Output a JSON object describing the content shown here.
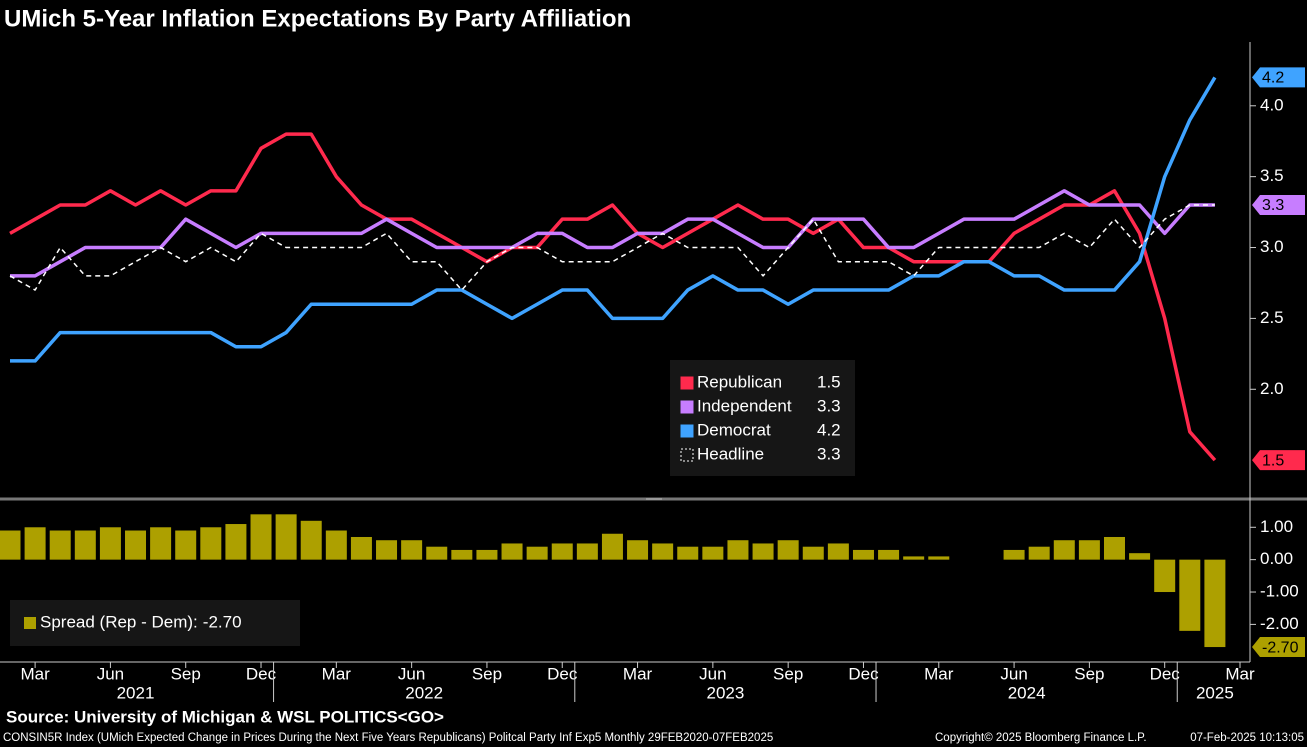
{
  "chart_data": [
    {
      "type": "line",
      "title": "UMich 5-Year Inflation Expectations By Party Affiliation",
      "x": [
        "2021-02",
        "2021-03",
        "2021-04",
        "2021-05",
        "2021-06",
        "2021-07",
        "2021-08",
        "2021-09",
        "2021-10",
        "2021-11",
        "2021-12",
        "2022-01",
        "2022-02",
        "2022-03",
        "2022-04",
        "2022-05",
        "2022-06",
        "2022-07",
        "2022-08",
        "2022-09",
        "2022-10",
        "2022-11",
        "2022-12",
        "2023-01",
        "2023-02",
        "2023-03",
        "2023-04",
        "2023-05",
        "2023-06",
        "2023-07",
        "2023-08",
        "2023-09",
        "2023-10",
        "2023-11",
        "2023-12",
        "2024-01",
        "2024-02",
        "2024-03",
        "2024-04",
        "2024-05",
        "2024-06",
        "2024-07",
        "2024-08",
        "2024-09",
        "2024-10",
        "2024-11",
        "2024-12",
        "2025-01",
        "2025-02"
      ],
      "xlim": [
        "2021-02",
        "2025-03"
      ],
      "series": [
        {
          "name": "Republican",
          "color": "#ff2a4d",
          "values": [
            3.1,
            3.2,
            3.3,
            3.3,
            3.4,
            3.3,
            3.4,
            3.3,
            3.4,
            3.4,
            3.7,
            3.8,
            3.8,
            3.5,
            3.3,
            3.2,
            3.2,
            3.1,
            3.0,
            2.9,
            3.0,
            3.0,
            3.2,
            3.2,
            3.3,
            3.1,
            3.0,
            3.1,
            3.2,
            3.3,
            3.2,
            3.2,
            3.1,
            3.2,
            3.0,
            3.0,
            2.9,
            2.9,
            2.9,
            2.9,
            3.1,
            3.2,
            3.3,
            3.3,
            3.4,
            3.1,
            2.5,
            1.7,
            1.5
          ]
        },
        {
          "name": "Independent",
          "color": "#c77dff",
          "values": [
            2.8,
            2.8,
            2.9,
            3.0,
            3.0,
            3.0,
            3.0,
            3.2,
            3.1,
            3.0,
            3.1,
            3.1,
            3.1,
            3.1,
            3.1,
            3.2,
            3.1,
            3.0,
            3.0,
            3.0,
            3.0,
            3.1,
            3.1,
            3.0,
            3.0,
            3.1,
            3.1,
            3.2,
            3.2,
            3.1,
            3.0,
            3.0,
            3.2,
            3.2,
            3.2,
            3.0,
            3.0,
            3.1,
            3.2,
            3.2,
            3.2,
            3.3,
            3.4,
            3.3,
            3.3,
            3.3,
            3.1,
            3.3,
            3.3
          ]
        },
        {
          "name": "Democrat",
          "color": "#3fa3ff",
          "values": [
            2.2,
            2.2,
            2.4,
            2.4,
            2.4,
            2.4,
            2.4,
            2.4,
            2.4,
            2.3,
            2.3,
            2.4,
            2.6,
            2.6,
            2.6,
            2.6,
            2.6,
            2.7,
            2.7,
            2.6,
            2.5,
            2.6,
            2.7,
            2.7,
            2.5,
            2.5,
            2.5,
            2.7,
            2.8,
            2.7,
            2.7,
            2.6,
            2.7,
            2.7,
            2.7,
            2.7,
            2.8,
            2.8,
            2.9,
            2.9,
            2.8,
            2.8,
            2.7,
            2.7,
            2.7,
            2.9,
            3.5,
            3.9,
            4.2
          ]
        },
        {
          "name": "Headline",
          "color": "#ffffff",
          "dashed": true,
          "values": [
            2.8,
            2.7,
            3.0,
            2.8,
            2.8,
            2.9,
            3.0,
            2.9,
            3.0,
            2.9,
            3.1,
            3.0,
            3.0,
            3.0,
            3.0,
            3.1,
            2.9,
            2.9,
            2.7,
            2.9,
            3.0,
            3.0,
            2.9,
            2.9,
            2.9,
            3.0,
            3.1,
            3.0,
            3.0,
            3.0,
            2.8,
            3.0,
            3.2,
            2.9,
            2.9,
            2.9,
            2.8,
            3.0,
            3.0,
            3.0,
            3.0,
            3.0,
            3.1,
            3.0,
            3.2,
            3.0,
            3.2,
            3.3,
            3.3
          ]
        }
      ],
      "ylim": [
        1.24,
        4.45
      ],
      "yticks": [
        {
          "value": 2,
          "label": "2.0"
        },
        {
          "value": 2.5,
          "label": "2.5"
        },
        {
          "value": 3,
          "label": "3.0"
        },
        {
          "value": 3.5,
          "label": "3.5"
        },
        {
          "value": 4,
          "label": "4.0"
        }
      ],
      "tags": [
        0,
        1,
        2
      ],
      "grid": false
    },
    {
      "type": "bar",
      "name": "Spread (Rep - Dem):",
      "color": "#ada000",
      "x": [
        "2021-02",
        "2021-03",
        "2021-04",
        "2021-05",
        "2021-06",
        "2021-07",
        "2021-08",
        "2021-09",
        "2021-10",
        "2021-11",
        "2021-12",
        "2022-01",
        "2022-02",
        "2022-03",
        "2022-04",
        "2022-05",
        "2022-06",
        "2022-07",
        "2022-08",
        "2022-09",
        "2022-10",
        "2022-11",
        "2022-12",
        "2023-01",
        "2023-02",
        "2023-03",
        "2023-04",
        "2023-05",
        "2023-06",
        "2023-07",
        "2023-08",
        "2023-09",
        "2023-10",
        "2023-11",
        "2023-12",
        "2024-01",
        "2024-02",
        "2024-03",
        "2024-04",
        "2024-05",
        "2024-06",
        "2024-07",
        "2024-08",
        "2024-09",
        "2024-10",
        "2024-11",
        "2024-12",
        "2025-01",
        "2025-02"
      ],
      "xlim": [
        "2021-02",
        "2025-03"
      ],
      "values": [
        0.9,
        1.0,
        0.9,
        0.9,
        1.0,
        0.9,
        1.0,
        0.9,
        1.0,
        1.1,
        1.4,
        1.4,
        1.2,
        0.9,
        0.7,
        0.6,
        0.6,
        0.4,
        0.3,
        0.3,
        0.5,
        0.4,
        0.5,
        0.5,
        0.8,
        0.6,
        0.5,
        0.4,
        0.4,
        0.6,
        0.5,
        0.6,
        0.4,
        0.5,
        0.3,
        0.3,
        0.1,
        0.1,
        0.0,
        0.0,
        0.3,
        0.4,
        0.6,
        0.6,
        0.7,
        0.2,
        -1.0,
        -2.2,
        -2.7
      ],
      "value_labels": [
        null,
        null,
        null,
        null,
        null,
        null,
        null,
        null,
        null,
        null,
        null,
        null,
        null,
        null,
        null,
        null,
        null,
        null,
        null,
        null,
        null,
        null,
        null,
        null,
        null,
        null,
        null,
        null,
        null,
        null,
        null,
        null,
        null,
        null,
        null,
        null,
        null,
        null,
        null,
        null,
        null,
        null,
        null,
        null,
        null,
        null,
        null,
        null,
        "-2.70"
      ],
      "ylim": [
        -3.1,
        1.75
      ],
      "yticks": [
        {
          "value": -2,
          "label": "-2.00"
        },
        {
          "value": -1,
          "label": "-1.00"
        },
        {
          "value": 0,
          "label": "0.00"
        },
        {
          "value": 1,
          "label": "1.00"
        }
      ],
      "xticks": [
        {
          "value": "2021-03",
          "label": "Mar"
        },
        {
          "value": "2021-06",
          "label": "Jun"
        },
        {
          "value": "2021-09",
          "label": "Sep"
        },
        {
          "value": "2021-12",
          "label": "Dec"
        },
        {
          "value": "2022-03",
          "label": "Mar"
        },
        {
          "value": "2022-06",
          "label": "Jun"
        },
        {
          "value": "2022-09",
          "label": "Sep"
        },
        {
          "value": "2022-12",
          "label": "Dec"
        },
        {
          "value": "2023-03",
          "label": "Mar"
        },
        {
          "value": "2023-06",
          "label": "Jun"
        },
        {
          "value": "2023-09",
          "label": "Sep"
        },
        {
          "value": "2023-12",
          "label": "Dec"
        },
        {
          "value": "2024-03",
          "label": "Mar"
        },
        {
          "value": "2024-06",
          "label": "Jun"
        },
        {
          "value": "2024-09",
          "label": "Sep"
        },
        {
          "value": "2024-12",
          "label": "Dec"
        },
        {
          "value": "2025-03",
          "label": "Mar"
        }
      ],
      "years": [
        "2021",
        "2022",
        "2023",
        "2024",
        "2025"
      ],
      "grid": false
    }
  ],
  "source": "Source: University of Michigan & WSL POLITICS<GO>",
  "footer": {
    "ticker": "CONSIN5R Index (UMich Expected Change in Prices During the Next Five Years Republicans) Politcal Party Inf Exp5  Monthly 29FEB2020-07FEB2025",
    "copyright": "Copyright© 2025 Bloomberg Finance L.P.",
    "timestamp": "07-Feb-2025 10:13:05"
  }
}
